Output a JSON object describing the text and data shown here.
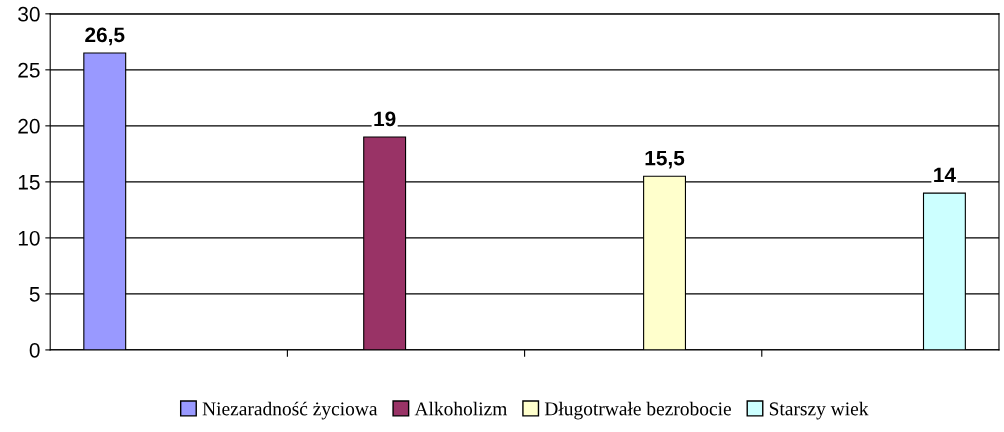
{
  "chart_data": {
    "type": "bar",
    "categories": [
      null,
      null,
      null,
      null
    ],
    "series": [
      {
        "name": "Niezaradność życiowa",
        "color": "#9999ff",
        "values": [
          26.5,
          null,
          null,
          null
        ],
        "value_labels": [
          "26,5",
          null,
          null,
          null
        ]
      },
      {
        "name": "Alkoholizm",
        "color": "#993366",
        "values": [
          null,
          19,
          null,
          null
        ],
        "value_labels": [
          null,
          "19",
          null,
          null
        ]
      },
      {
        "name": "Długotrwałe bezrobocie",
        "color": "#ffffcc",
        "values": [
          null,
          null,
          15.5,
          null
        ],
        "value_labels": [
          null,
          null,
          "15,5",
          null
        ]
      },
      {
        "name": "Starszy wiek",
        "color": "#ccffff",
        "values": [
          null,
          null,
          null,
          14
        ],
        "value_labels": [
          null,
          null,
          null,
          "14"
        ]
      }
    ],
    "ylim": [
      0,
      30
    ],
    "yticks": [
      0,
      5,
      10,
      15,
      20,
      25,
      30
    ],
    "grid": "y",
    "legend": "bottom",
    "tick_labels": "y"
  }
}
